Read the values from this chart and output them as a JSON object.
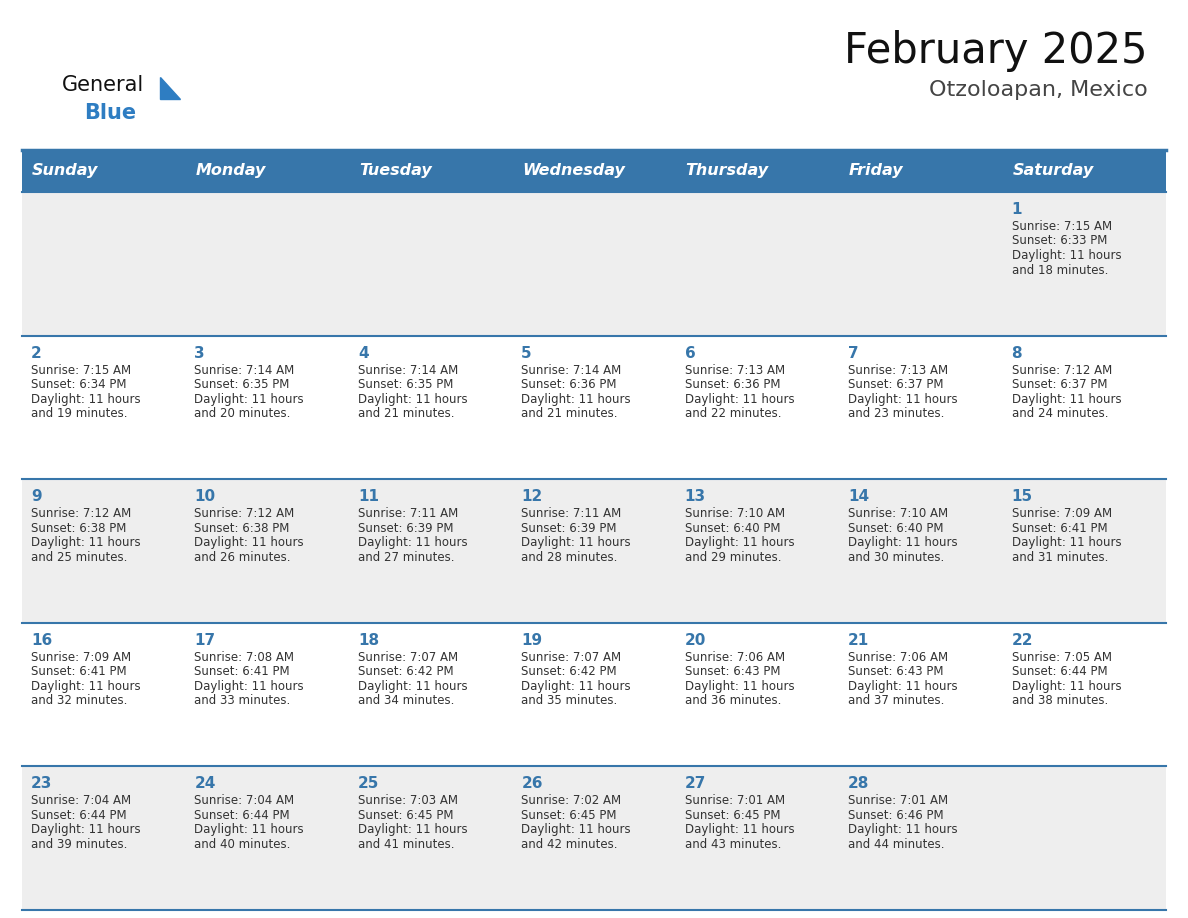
{
  "title": "February 2025",
  "subtitle": "Otzoloapan, Mexico",
  "header_bg": "#3776aa",
  "header_text": "#ffffff",
  "header_days": [
    "Sunday",
    "Monday",
    "Tuesday",
    "Wednesday",
    "Thursday",
    "Friday",
    "Saturday"
  ],
  "row_bg_odd": "#eeeeee",
  "row_bg_even": "#ffffff",
  "border_color": "#3776aa",
  "day_number_color": "#3776aa",
  "info_text_color": "#333333",
  "title_color": "#111111",
  "subtitle_color": "#444444",
  "logo_general_color": "#111111",
  "logo_blue_color": "#2e7dc2",
  "logo_triangle_color": "#2e7dc2",
  "calendar_data": [
    [
      null,
      null,
      null,
      null,
      null,
      null,
      {
        "day": "1",
        "sunrise": "7:15 AM",
        "sunset": "6:33 PM",
        "daylight_line1": "Daylight: 11 hours",
        "daylight_line2": "and 18 minutes."
      }
    ],
    [
      {
        "day": "2",
        "sunrise": "7:15 AM",
        "sunset": "6:34 PM",
        "daylight_line1": "Daylight: 11 hours",
        "daylight_line2": "and 19 minutes."
      },
      {
        "day": "3",
        "sunrise": "7:14 AM",
        "sunset": "6:35 PM",
        "daylight_line1": "Daylight: 11 hours",
        "daylight_line2": "and 20 minutes."
      },
      {
        "day": "4",
        "sunrise": "7:14 AM",
        "sunset": "6:35 PM",
        "daylight_line1": "Daylight: 11 hours",
        "daylight_line2": "and 21 minutes."
      },
      {
        "day": "5",
        "sunrise": "7:14 AM",
        "sunset": "6:36 PM",
        "daylight_line1": "Daylight: 11 hours",
        "daylight_line2": "and 21 minutes."
      },
      {
        "day": "6",
        "sunrise": "7:13 AM",
        "sunset": "6:36 PM",
        "daylight_line1": "Daylight: 11 hours",
        "daylight_line2": "and 22 minutes."
      },
      {
        "day": "7",
        "sunrise": "7:13 AM",
        "sunset": "6:37 PM",
        "daylight_line1": "Daylight: 11 hours",
        "daylight_line2": "and 23 minutes."
      },
      {
        "day": "8",
        "sunrise": "7:12 AM",
        "sunset": "6:37 PM",
        "daylight_line1": "Daylight: 11 hours",
        "daylight_line2": "and 24 minutes."
      }
    ],
    [
      {
        "day": "9",
        "sunrise": "7:12 AM",
        "sunset": "6:38 PM",
        "daylight_line1": "Daylight: 11 hours",
        "daylight_line2": "and 25 minutes."
      },
      {
        "day": "10",
        "sunrise": "7:12 AM",
        "sunset": "6:38 PM",
        "daylight_line1": "Daylight: 11 hours",
        "daylight_line2": "and 26 minutes."
      },
      {
        "day": "11",
        "sunrise": "7:11 AM",
        "sunset": "6:39 PM",
        "daylight_line1": "Daylight: 11 hours",
        "daylight_line2": "and 27 minutes."
      },
      {
        "day": "12",
        "sunrise": "7:11 AM",
        "sunset": "6:39 PM",
        "daylight_line1": "Daylight: 11 hours",
        "daylight_line2": "and 28 minutes."
      },
      {
        "day": "13",
        "sunrise": "7:10 AM",
        "sunset": "6:40 PM",
        "daylight_line1": "Daylight: 11 hours",
        "daylight_line2": "and 29 minutes."
      },
      {
        "day": "14",
        "sunrise": "7:10 AM",
        "sunset": "6:40 PM",
        "daylight_line1": "Daylight: 11 hours",
        "daylight_line2": "and 30 minutes."
      },
      {
        "day": "15",
        "sunrise": "7:09 AM",
        "sunset": "6:41 PM",
        "daylight_line1": "Daylight: 11 hours",
        "daylight_line2": "and 31 minutes."
      }
    ],
    [
      {
        "day": "16",
        "sunrise": "7:09 AM",
        "sunset": "6:41 PM",
        "daylight_line1": "Daylight: 11 hours",
        "daylight_line2": "and 32 minutes."
      },
      {
        "day": "17",
        "sunrise": "7:08 AM",
        "sunset": "6:41 PM",
        "daylight_line1": "Daylight: 11 hours",
        "daylight_line2": "and 33 minutes."
      },
      {
        "day": "18",
        "sunrise": "7:07 AM",
        "sunset": "6:42 PM",
        "daylight_line1": "Daylight: 11 hours",
        "daylight_line2": "and 34 minutes."
      },
      {
        "day": "19",
        "sunrise": "7:07 AM",
        "sunset": "6:42 PM",
        "daylight_line1": "Daylight: 11 hours",
        "daylight_line2": "and 35 minutes."
      },
      {
        "day": "20",
        "sunrise": "7:06 AM",
        "sunset": "6:43 PM",
        "daylight_line1": "Daylight: 11 hours",
        "daylight_line2": "and 36 minutes."
      },
      {
        "day": "21",
        "sunrise": "7:06 AM",
        "sunset": "6:43 PM",
        "daylight_line1": "Daylight: 11 hours",
        "daylight_line2": "and 37 minutes."
      },
      {
        "day": "22",
        "sunrise": "7:05 AM",
        "sunset": "6:44 PM",
        "daylight_line1": "Daylight: 11 hours",
        "daylight_line2": "and 38 minutes."
      }
    ],
    [
      {
        "day": "23",
        "sunrise": "7:04 AM",
        "sunset": "6:44 PM",
        "daylight_line1": "Daylight: 11 hours",
        "daylight_line2": "and 39 minutes."
      },
      {
        "day": "24",
        "sunrise": "7:04 AM",
        "sunset": "6:44 PM",
        "daylight_line1": "Daylight: 11 hours",
        "daylight_line2": "and 40 minutes."
      },
      {
        "day": "25",
        "sunrise": "7:03 AM",
        "sunset": "6:45 PM",
        "daylight_line1": "Daylight: 11 hours",
        "daylight_line2": "and 41 minutes."
      },
      {
        "day": "26",
        "sunrise": "7:02 AM",
        "sunset": "6:45 PM",
        "daylight_line1": "Daylight: 11 hours",
        "daylight_line2": "and 42 minutes."
      },
      {
        "day": "27",
        "sunrise": "7:01 AM",
        "sunset": "6:45 PM",
        "daylight_line1": "Daylight: 11 hours",
        "daylight_line2": "and 43 minutes."
      },
      {
        "day": "28",
        "sunrise": "7:01 AM",
        "sunset": "6:46 PM",
        "daylight_line1": "Daylight: 11 hours",
        "daylight_line2": "and 44 minutes."
      },
      null
    ]
  ]
}
